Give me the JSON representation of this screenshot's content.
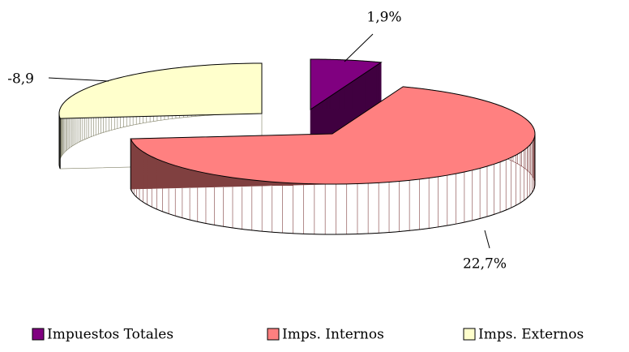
{
  "chart_data": {
    "type": "pie3d",
    "categories": [
      "Impuestos Totales",
      "Imps. Internos",
      "Imps. Externos"
    ],
    "values": [
      1.9,
      22.7,
      -8.9
    ],
    "value_labels": [
      "1,9%",
      "22,7%",
      "-8,9"
    ],
    "colors": [
      "#800080",
      "#ff8080",
      "#ffffcc"
    ],
    "side_colors": [
      "#400040",
      "#804040",
      "#808066"
    ],
    "legend": "bottom"
  }
}
